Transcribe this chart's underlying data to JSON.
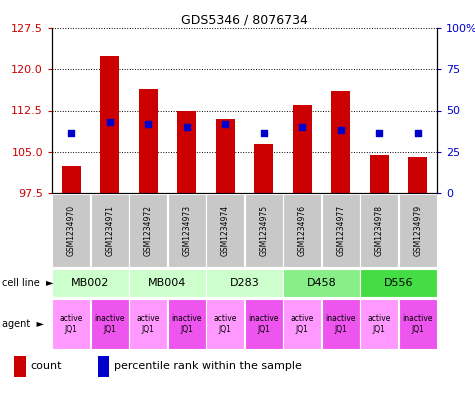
{
  "title": "GDS5346 / 8076734",
  "samples": [
    "GSM1234970",
    "GSM1234971",
    "GSM1234972",
    "GSM1234973",
    "GSM1234974",
    "GSM1234975",
    "GSM1234976",
    "GSM1234977",
    "GSM1234978",
    "GSM1234979"
  ],
  "bar_values": [
    102.5,
    122.5,
    116.5,
    112.5,
    111.0,
    106.5,
    113.5,
    116.0,
    104.5,
    104.0
  ],
  "bar_base": 97.5,
  "dot_values": [
    108.5,
    110.5,
    110.0,
    109.5,
    110.0,
    108.5,
    109.5,
    109.0,
    108.5,
    108.5
  ],
  "ylim_left": [
    97.5,
    127.5
  ],
  "yticks_left": [
    97.5,
    105.0,
    112.5,
    120.0,
    127.5
  ],
  "ylim_right": [
    0,
    100
  ],
  "yticks_right": [
    0,
    25,
    50,
    75,
    100
  ],
  "ytick_labels_right": [
    "0",
    "25",
    "50",
    "75",
    "100%"
  ],
  "cell_lines": [
    {
      "label": "MB002",
      "cols": [
        0,
        1
      ],
      "color": "#ccffcc"
    },
    {
      "label": "MB004",
      "cols": [
        2,
        3
      ],
      "color": "#ccffcc"
    },
    {
      "label": "D283",
      "cols": [
        4,
        5
      ],
      "color": "#ccffcc"
    },
    {
      "label": "D458",
      "cols": [
        6,
        7
      ],
      "color": "#88ee88"
    },
    {
      "label": "D556",
      "cols": [
        8,
        9
      ],
      "color": "#44dd44"
    }
  ],
  "agent_colors": [
    "#ff99ff",
    "#ee55ee",
    "#ff99ff",
    "#ee55ee",
    "#ff99ff",
    "#ee55ee",
    "#ff99ff",
    "#ee55ee",
    "#ff99ff",
    "#ee55ee"
  ],
  "agent_labels": [
    "active\nJQ1",
    "inactive\nJQ1",
    "active\nJQ1",
    "inactive\nJQ1",
    "active\nJQ1",
    "inactive\nJQ1",
    "active\nJQ1",
    "inactive\nJQ1",
    "active\nJQ1",
    "inactive\nJQ1"
  ],
  "bar_color": "#cc0000",
  "dot_color": "#0000cc",
  "grid_color": "#000000",
  "left_tick_color": "#cc0000",
  "right_tick_color": "#0000cc",
  "sample_box_color": "#c8c8c8",
  "legend_count_color": "#cc0000",
  "legend_dot_color": "#0000cc"
}
